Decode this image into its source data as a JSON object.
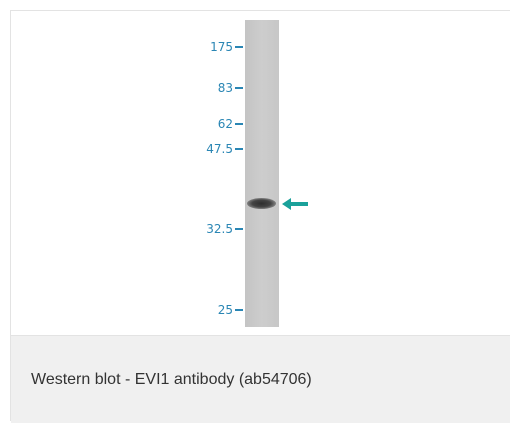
{
  "figure": {
    "markers": [
      "175",
      "83",
      "62",
      "47.5",
      "32.5",
      "25"
    ],
    "colors": {
      "marker": "#2a86b4",
      "arrow": "#1aa19a",
      "lane": "#c8c8c8",
      "caption_bg": "#f0f0f0"
    }
  },
  "caption": {
    "text": "Western blot - EVI1 antibody (ab54706)"
  }
}
